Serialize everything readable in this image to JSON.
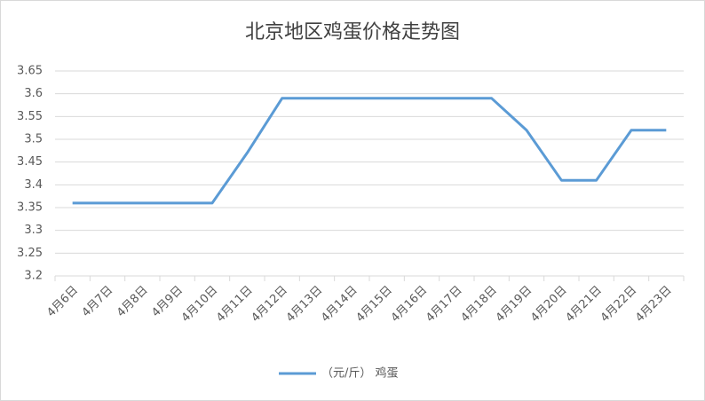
{
  "chart_data": {
    "type": "line",
    "title": "北京地区鸡蛋价格走势图",
    "categories": [
      "4月6日",
      "4月7日",
      "4月8日",
      "4月9日",
      "4月10日",
      "4月11日",
      "4月12日",
      "4月13日",
      "4月14日",
      "4月15日",
      "4月16日",
      "4月17日",
      "4月18日",
      "4月19日",
      "4月20日",
      "4月21日",
      "4月22日",
      "4月23日"
    ],
    "series": [
      {
        "name": "（元/斤） 鸡蛋",
        "color": "#5b9bd5",
        "values": [
          3.36,
          3.36,
          3.36,
          3.36,
          3.36,
          3.47,
          3.59,
          3.59,
          3.59,
          3.59,
          3.59,
          3.59,
          3.59,
          3.52,
          3.41,
          3.41,
          3.52,
          3.52
        ]
      }
    ],
    "ylim": [
      3.2,
      3.65
    ],
    "yticks": [
      3.2,
      3.25,
      3.3,
      3.35,
      3.4,
      3.45,
      3.5,
      3.55,
      3.6,
      3.65
    ],
    "grid": true,
    "legend": "bottom"
  }
}
